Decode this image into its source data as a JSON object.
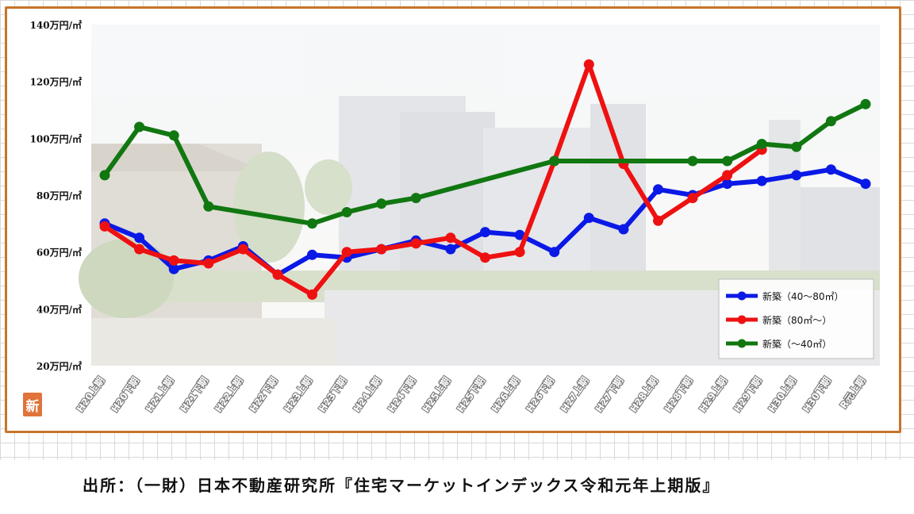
{
  "source": {
    "text": "出所：（一財）日本不動産研究所『住宅マーケットインデックス令和元年上期版』"
  },
  "logo": {
    "glyph": "新"
  },
  "colors": {
    "frame": "#c8742a",
    "series_blue": "#0a19e6",
    "series_red": "#ee1111",
    "series_green": "#117711"
  },
  "chart_data": {
    "type": "line",
    "title": "",
    "xlabel": "",
    "ylabel": "",
    "ylim": [
      20,
      140
    ],
    "grid": false,
    "legend_position": "bottom-right",
    "y_ticks": [
      {
        "value": 140,
        "label": "140万円/㎡"
      },
      {
        "value": 120,
        "label": "120万円/㎡"
      },
      {
        "value": 100,
        "label": "100万円/㎡"
      },
      {
        "value": 80,
        "label": "80万円/㎡"
      },
      {
        "value": 60,
        "label": "60万円/㎡"
      },
      {
        "value": 40,
        "label": "40万円/㎡"
      },
      {
        "value": 20,
        "label": "20万円/㎡"
      }
    ],
    "categories": [
      "H20上期",
      "H20下期",
      "H21上期",
      "H21下期",
      "H22上期",
      "H22下期",
      "H23上期",
      "H23下期",
      "H24上期",
      "H24下期",
      "H25上期",
      "H25下期",
      "H26上期",
      "H26下期",
      "H27上期",
      "H27下期",
      "H28上期",
      "H28下期",
      "H29上期",
      "H29下期",
      "H30上期",
      "H30下期",
      "R元上期"
    ],
    "series": [
      {
        "name": "新築（40～80㎡）",
        "color": "#0a19e6",
        "values": [
          70,
          65,
          54,
          57,
          62,
          52,
          59,
          58,
          61,
          64,
          61,
          67,
          66,
          60,
          72,
          68,
          82,
          80,
          84,
          85,
          87,
          89,
          84
        ]
      },
      {
        "name": "新築（80㎡～）",
        "color": "#ee1111",
        "values": [
          69,
          61,
          57,
          56,
          61,
          52,
          45,
          60,
          61,
          63,
          65,
          58,
          60,
          92,
          126,
          91,
          71,
          79,
          87,
          96,
          null,
          null,
          null
        ]
      },
      {
        "name": "新築（～40㎡）",
        "color": "#117711",
        "values": [
          87,
          104,
          101,
          76,
          null,
          null,
          70,
          74,
          77,
          79,
          null,
          null,
          null,
          92,
          null,
          null,
          null,
          92,
          92,
          98,
          97,
          106,
          112
        ]
      }
    ]
  }
}
